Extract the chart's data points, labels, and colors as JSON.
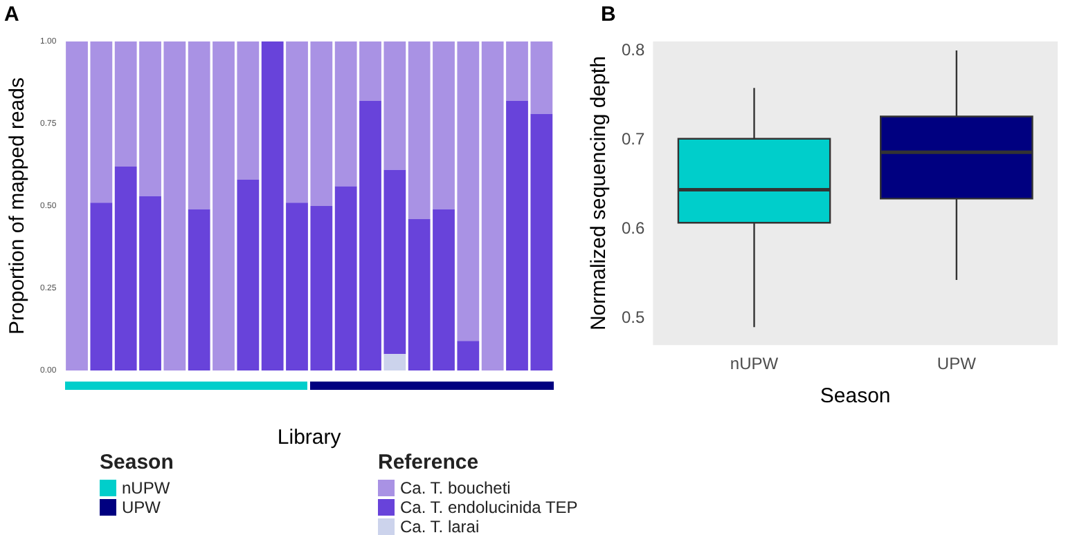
{
  "chart_data": [
    {
      "type": "bar",
      "stacked": true,
      "ylabel": "Proportion of mapped reads",
      "xlabel": "Library",
      "legend_title": "Reference",
      "legend": "bottom",
      "annotations": [
        "A",
        "Season",
        "nUPW",
        "UPW"
      ],
      "categories": [
        null,
        null,
        null,
        null,
        null,
        null,
        null,
        null,
        null,
        null,
        null,
        null,
        null,
        null,
        null,
        null,
        null,
        null,
        null,
        null
      ],
      "ylim": [
        0,
        1
      ],
      "yticks": [
        {
          "value": 0,
          "label": "0.00"
        },
        {
          "value": 0.25,
          "label": "0.25"
        },
        {
          "value": 0.5,
          "label": "0.50"
        },
        {
          "value": 0.75,
          "label": "0.75"
        },
        {
          "value": 1,
          "label": "1.00"
        }
      ],
      "series": [
        {
          "name": "Ca. T. larai",
          "color": "#ccd3ec",
          "values": [
            0,
            0,
            0,
            0,
            0,
            0,
            0,
            0,
            0,
            0,
            0,
            0,
            0,
            0.05,
            0,
            0,
            0,
            0,
            0,
            0
          ]
        },
        {
          "name": "Ca. T. endolucinida TEP",
          "color": "#6843da",
          "values": [
            0,
            0.51,
            0.62,
            0.53,
            0,
            0.49,
            0,
            0.58,
            1,
            0.51,
            0.5,
            0.56,
            0.82,
            0.56,
            0.46,
            0.49,
            0.09,
            0,
            0.82,
            0.78
          ]
        },
        {
          "name": "Ca. T. boucheti",
          "color": "#a992e4",
          "values": [
            1,
            0.49,
            0.38,
            0.47,
            1,
            0.51,
            1,
            0.42,
            0,
            0.49,
            0.5,
            0.44,
            0.18,
            0.39,
            0.54,
            0.51,
            0.91,
            1,
            0.18,
            0.22
          ]
        }
      ]
    },
    {
      "type": "box",
      "ylabel": "Normalized sequencing depth",
      "xlabel": "Season",
      "annotations": [
        "B"
      ],
      "categories": [
        "nUPW",
        "UPW"
      ],
      "colors": [
        "#00cecb",
        "#000080"
      ],
      "ylim": [
        0.47,
        0.81
      ],
      "yticks": [
        0.5,
        0.6,
        0.7,
        0.8
      ],
      "boxes": [
        {
          "low": 0.49,
          "q1": 0.607,
          "median": 0.644,
          "q3": 0.701,
          "high": 0.758
        },
        {
          "low": 0.543,
          "q1": 0.634,
          "median": 0.686,
          "q3": 0.726,
          "high": 0.8
        }
      ]
    }
  ]
}
